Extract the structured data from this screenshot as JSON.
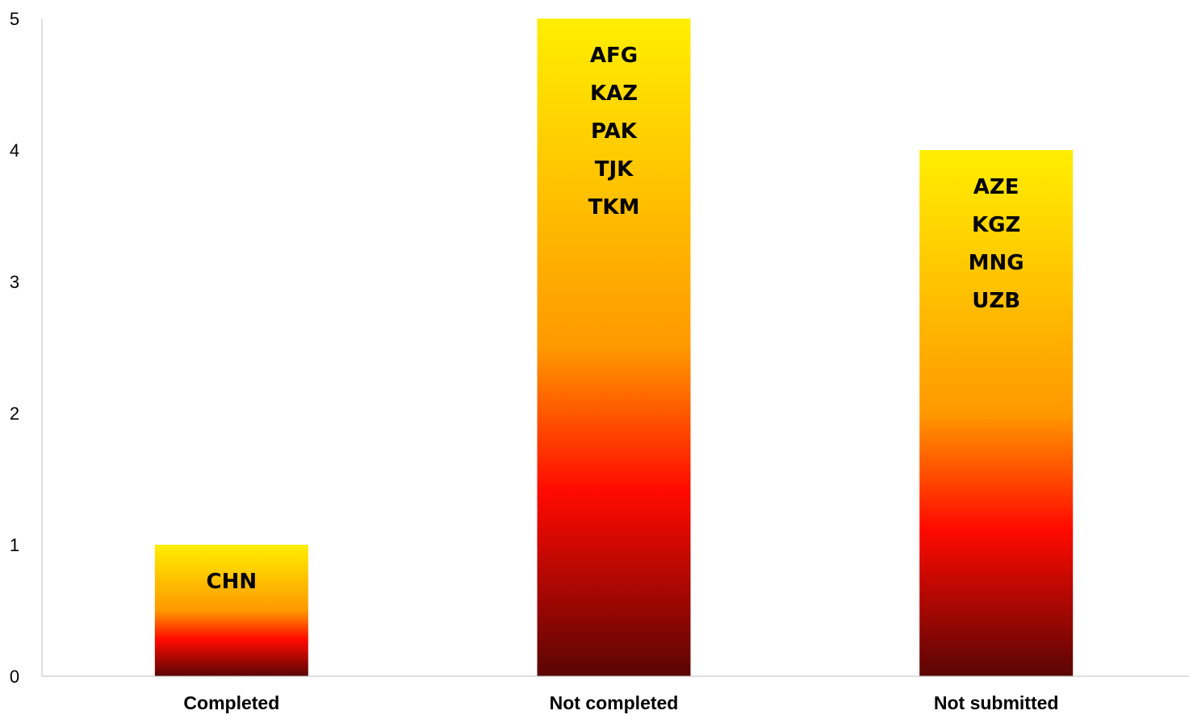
{
  "colors": {
    "bar_top": "#ffee00",
    "bar_mid_orange": "#ff9900",
    "bar_red": "#ff0a00",
    "bar_bottom": "#5a0505",
    "axis": "#bfbfbf"
  },
  "chart_data": {
    "type": "bar",
    "title": "",
    "xlabel": "",
    "ylabel": "",
    "ylim": [
      0,
      5
    ],
    "yticks": [
      "0",
      "1",
      "2",
      "3",
      "4",
      "5"
    ],
    "grid": false,
    "legend": "none",
    "categories": [
      "Completed",
      "Not completed",
      "Not submitted"
    ],
    "values": [
      1,
      5,
      4
    ],
    "bar_labels": [
      [
        "CHN"
      ],
      [
        "AFG",
        "KAZ",
        "PAK",
        "TJK",
        "TKM"
      ],
      [
        "AZE",
        "KGZ",
        "MNG",
        "UZB"
      ]
    ]
  }
}
